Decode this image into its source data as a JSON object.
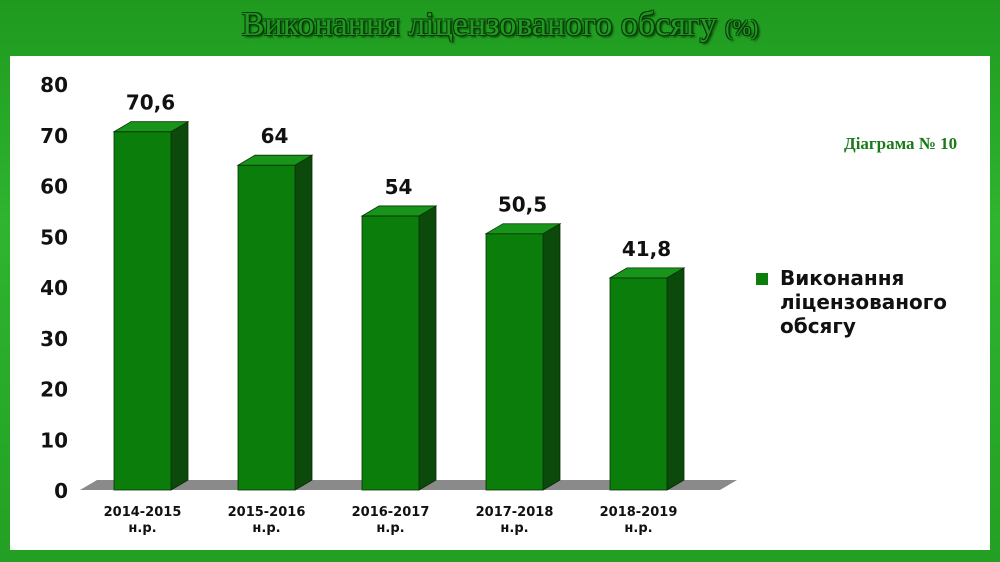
{
  "slide": {
    "title": "Виконання ліцензованого обсягу",
    "title_unit": "(%)",
    "diagram_label": "Діаграма № 10"
  },
  "colors": {
    "bar_front": "#0a7d0a",
    "bar_side": "#0c4a0c",
    "bar_top": "#18941a",
    "floor": "#8a8a8a",
    "background": "#2aa82a"
  },
  "chart_data": {
    "type": "bar",
    "categories": [
      "2014-2015 н.р.",
      "2015-2016 н.р.",
      "2016-2017 н.р.",
      "2017-2018 н.р.",
      "2018-2019 н.р."
    ],
    "category_lines": [
      [
        "2014-2015",
        "н.р."
      ],
      [
        "2015-2016",
        "н.р."
      ],
      [
        "2016-2017",
        "н.р."
      ],
      [
        "2017-2018",
        "н.р."
      ],
      [
        "2018-2019",
        "н.р."
      ]
    ],
    "series": [
      {
        "name": "Виконання ліцензованого обсягу",
        "values": [
          70.6,
          64,
          54,
          50.5,
          41.8
        ]
      }
    ],
    "data_labels": [
      "70,6",
      "64",
      "54",
      "50,5",
      "41,8"
    ],
    "yticks": [
      0,
      10,
      20,
      30,
      40,
      50,
      60,
      70,
      80
    ],
    "ylim": [
      0,
      80
    ],
    "grid": false,
    "legend_position": "right",
    "style": "3d-bar"
  }
}
